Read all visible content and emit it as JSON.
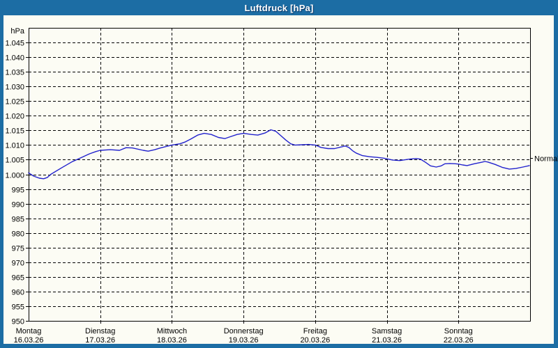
{
  "window": {
    "title": "Luftdruck [hPa]"
  },
  "colors": {
    "frame_blue": "#1c6da4",
    "background": "#fcfcf4",
    "grid": "#000000",
    "series_blue": "#2121cd",
    "title_text": "#ffffff"
  },
  "chart_data": {
    "type": "line",
    "title": "Luftdruck [hPa]",
    "ylabel": "hPa",
    "unit_label": "hPa",
    "ylim": [
      950,
      1050
    ],
    "y_step": 5,
    "grid": "dashed",
    "y_tick_labels": [
      "1.045",
      "1.040",
      "1.035",
      "1.030",
      "1.025",
      "1.020",
      "1.015",
      "1.010",
      "1.005",
      "1.000",
      "995",
      "990",
      "985",
      "980",
      "975",
      "970",
      "965",
      "960",
      "955",
      "950"
    ],
    "days": [
      {
        "name": "Montag",
        "date": "16.03.26"
      },
      {
        "name": "Dienstag",
        "date": "17.03.26"
      },
      {
        "name": "Mittwoch",
        "date": "18.03.26"
      },
      {
        "name": "Donnerstag",
        "date": "19.03.26"
      },
      {
        "name": "Freitag",
        "date": "20.03.26"
      },
      {
        "name": "Samstag",
        "date": "21.03.26"
      },
      {
        "name": "Sonntag",
        "date": "22.03.26"
      }
    ],
    "normal_label": "Normal",
    "normal_value": 1005.5,
    "series": [
      {
        "name": "Luftdruck",
        "color": "#2121cd",
        "x_unit": "days_since_mon_00h",
        "points": [
          [
            0.0,
            1000.5
          ],
          [
            0.07,
            999.4
          ],
          [
            0.15,
            998.7
          ],
          [
            0.21,
            998.5
          ],
          [
            0.26,
            998.9
          ],
          [
            0.31,
            1000.0
          ],
          [
            0.46,
            1002.2
          ],
          [
            0.6,
            1004.2
          ],
          [
            0.75,
            1005.9
          ],
          [
            0.85,
            1007.0
          ],
          [
            0.94,
            1007.8
          ],
          [
            1.0,
            1008.2
          ],
          [
            1.14,
            1008.4
          ],
          [
            1.27,
            1008.2
          ],
          [
            1.36,
            1009.1
          ],
          [
            1.45,
            1009.0
          ],
          [
            1.6,
            1008.2
          ],
          [
            1.67,
            1007.9
          ],
          [
            1.76,
            1008.4
          ],
          [
            1.84,
            1009.0
          ],
          [
            2.0,
            1010.0
          ],
          [
            2.11,
            1010.4
          ],
          [
            2.18,
            1011.0
          ],
          [
            2.26,
            1012.0
          ],
          [
            2.36,
            1013.4
          ],
          [
            2.45,
            1014.0
          ],
          [
            2.55,
            1013.6
          ],
          [
            2.65,
            1012.6
          ],
          [
            2.74,
            1012.2
          ],
          [
            2.81,
            1012.8
          ],
          [
            2.91,
            1013.6
          ],
          [
            3.0,
            1014.0
          ],
          [
            3.11,
            1013.6
          ],
          [
            3.2,
            1013.4
          ],
          [
            3.3,
            1014.1
          ],
          [
            3.38,
            1015.2
          ],
          [
            3.45,
            1014.7
          ],
          [
            3.52,
            1013.2
          ],
          [
            3.59,
            1011.7
          ],
          [
            3.66,
            1010.4
          ],
          [
            3.72,
            1010.0
          ],
          [
            3.81,
            1010.1
          ],
          [
            3.91,
            1010.2
          ],
          [
            4.0,
            1010.0
          ],
          [
            4.08,
            1009.2
          ],
          [
            4.18,
            1008.8
          ],
          [
            4.27,
            1008.8
          ],
          [
            4.37,
            1009.4
          ],
          [
            4.42,
            1009.7
          ],
          [
            4.47,
            1009.2
          ],
          [
            4.52,
            1008.1
          ],
          [
            4.57,
            1007.3
          ],
          [
            4.66,
            1006.4
          ],
          [
            4.76,
            1006.0
          ],
          [
            4.86,
            1005.8
          ],
          [
            4.96,
            1005.5
          ],
          [
            5.0,
            1005.3
          ],
          [
            5.08,
            1004.9
          ],
          [
            5.18,
            1004.7
          ],
          [
            5.32,
            1005.2
          ],
          [
            5.41,
            1005.4
          ],
          [
            5.47,
            1005.2
          ],
          [
            5.54,
            1004.1
          ],
          [
            5.61,
            1002.9
          ],
          [
            5.69,
            1002.5
          ],
          [
            5.76,
            1002.9
          ],
          [
            5.81,
            1003.6
          ],
          [
            5.88,
            1003.7
          ],
          [
            5.96,
            1003.6
          ],
          [
            6.0,
            1003.5
          ],
          [
            6.06,
            1003.2
          ],
          [
            6.12,
            1003.0
          ],
          [
            6.22,
            1003.6
          ],
          [
            6.32,
            1004.1
          ],
          [
            6.37,
            1004.4
          ],
          [
            6.41,
            1004.2
          ],
          [
            6.51,
            1003.4
          ],
          [
            6.61,
            1002.4
          ],
          [
            6.71,
            1001.8
          ],
          [
            6.8,
            1002.0
          ],
          [
            6.9,
            1002.5
          ],
          [
            6.99,
            1003.0
          ]
        ]
      }
    ]
  }
}
